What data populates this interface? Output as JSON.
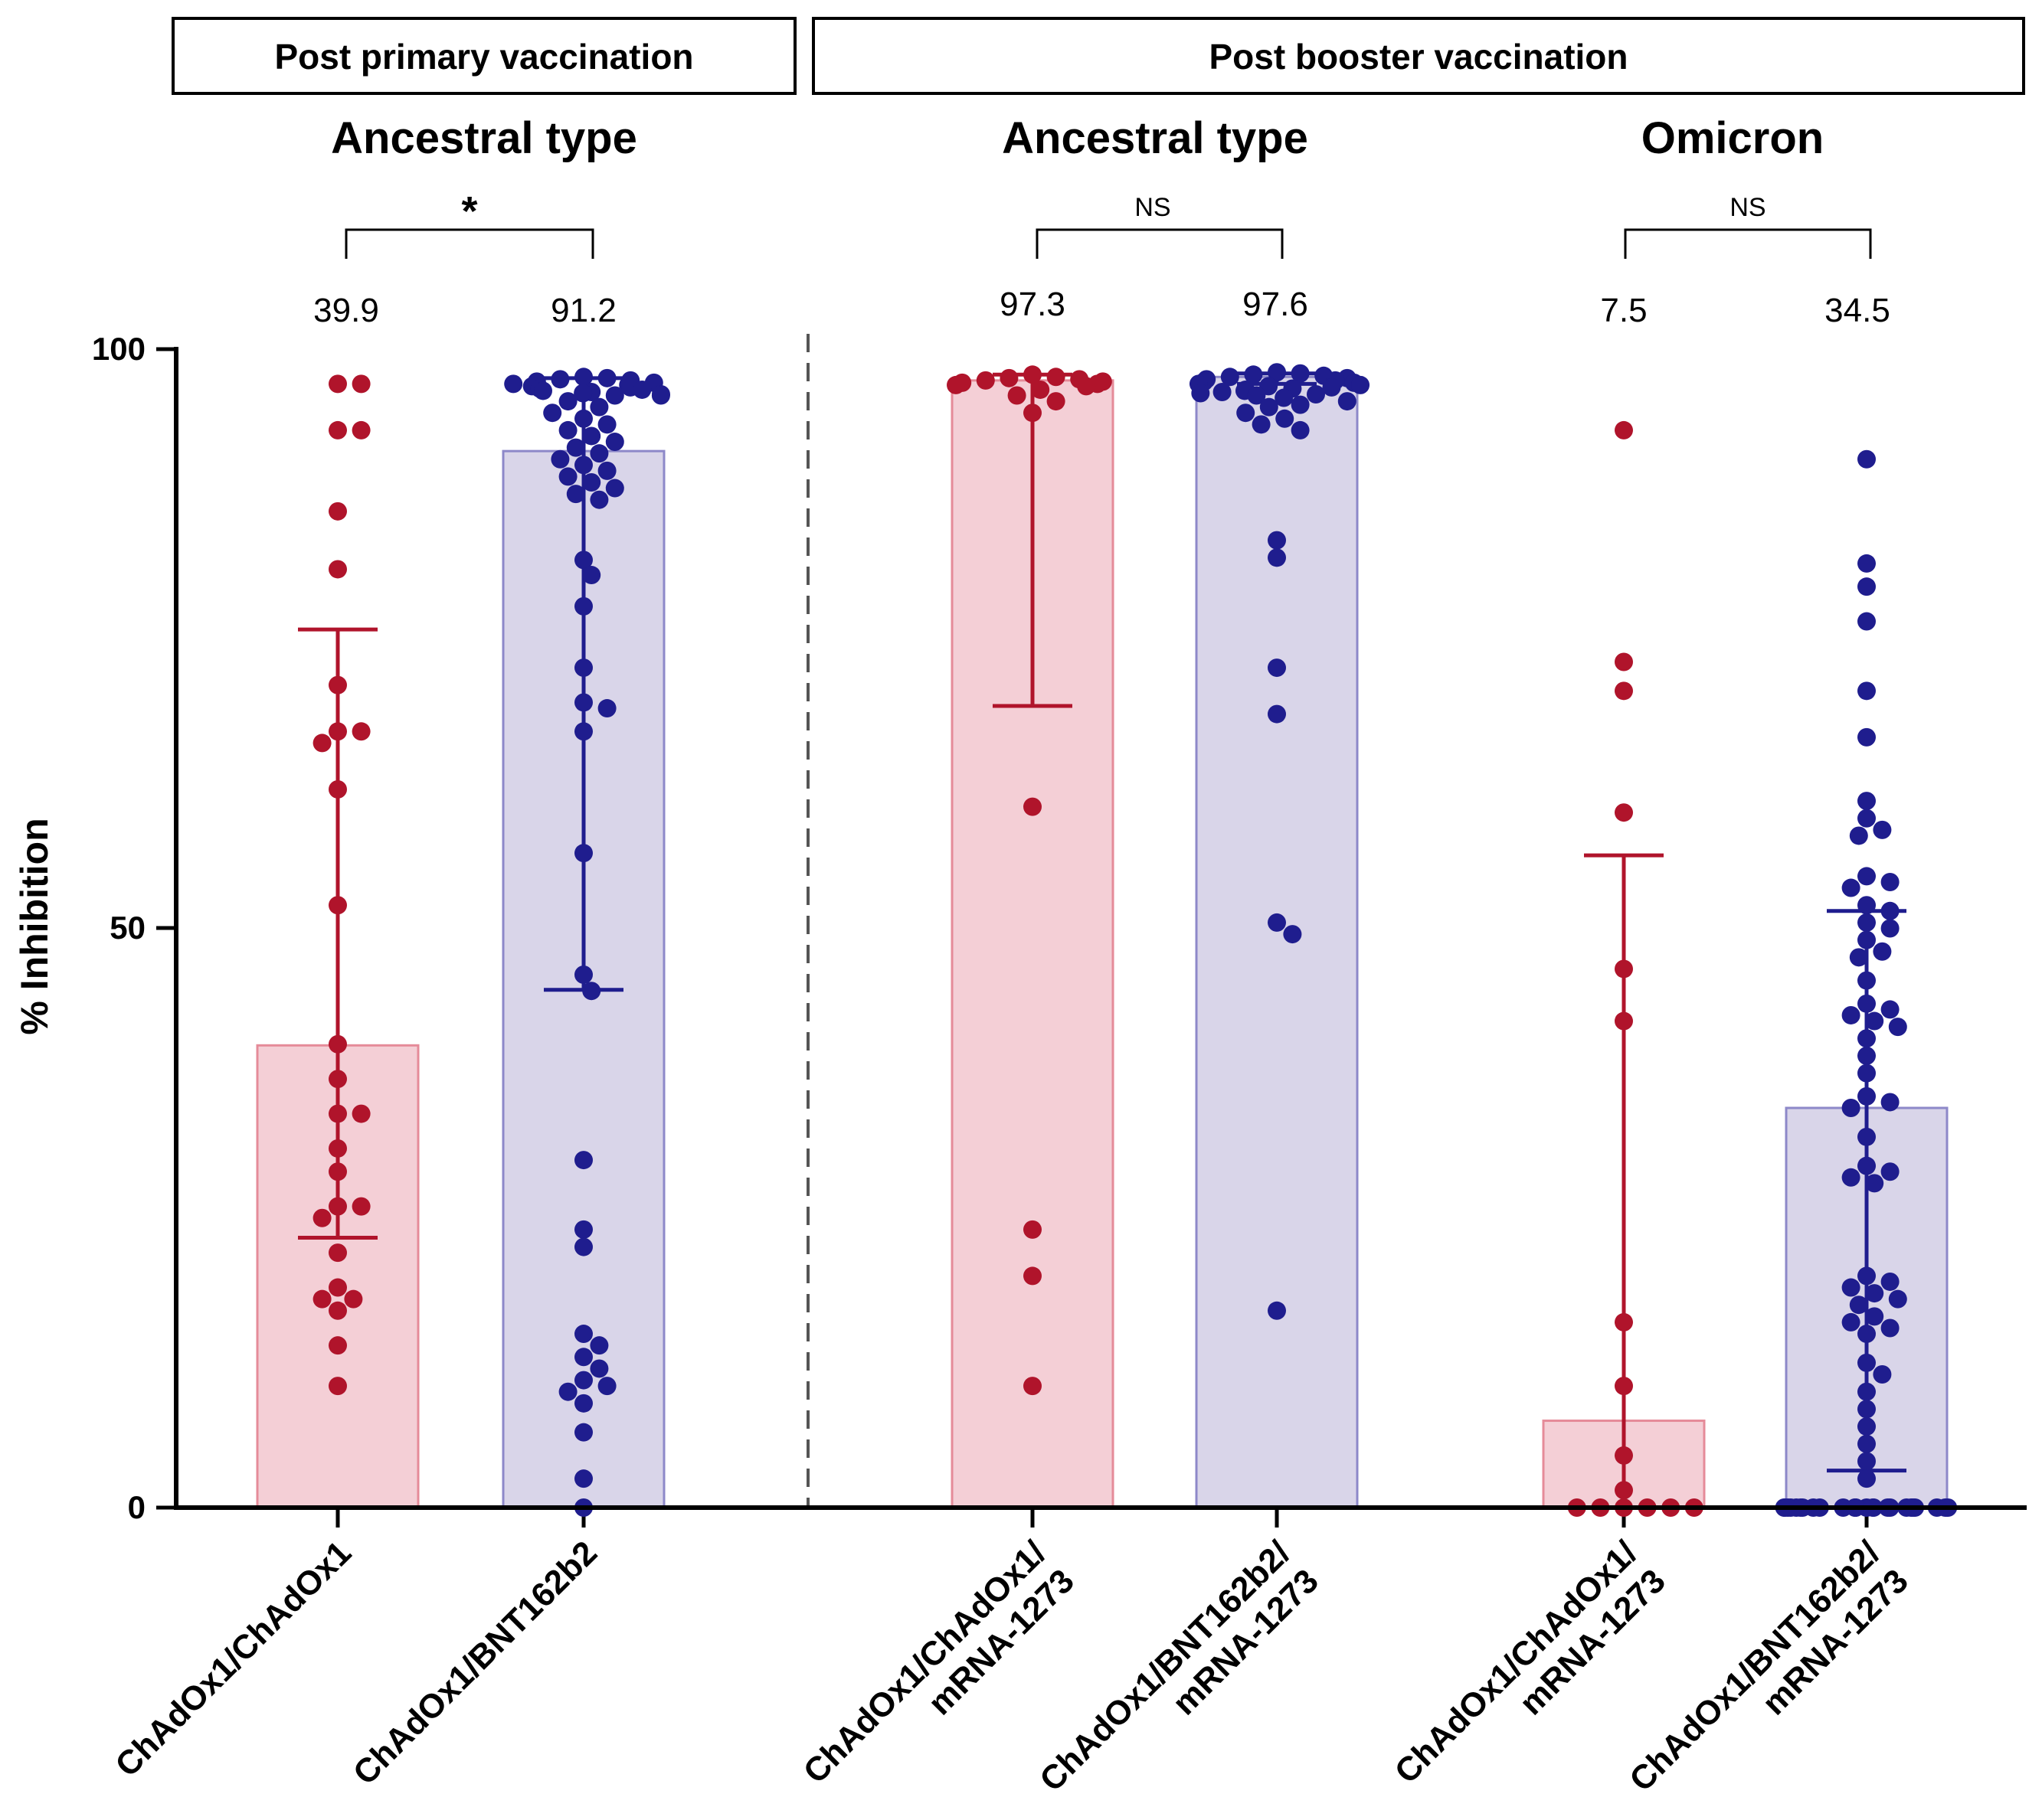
{
  "chart_data": {
    "type": "bar",
    "ylabel": "% Inhibition",
    "ylim": [
      0,
      100
    ],
    "yticks": [
      0,
      50,
      100
    ],
    "colors": {
      "red_fill": "#f4cfd6",
      "red_stroke": "#e58b99",
      "red_point": "#b0142b",
      "blue_fill": "#d9d5e9",
      "blue_stroke": "#8d88c9",
      "blue_point": "#1f1d8e"
    },
    "panels": [
      {
        "label": "Post primary vaccination"
      },
      {
        "label": "Post booster vaccination"
      }
    ],
    "groups": [
      {
        "title": "Ancestral type",
        "significance": "*"
      },
      {
        "title": "Ancestral type",
        "significance": "NS"
      },
      {
        "title": "Omicron",
        "significance": "NS"
      }
    ],
    "bars": [
      {
        "label": [
          "ChAdOx1/ChAdOx1"
        ],
        "mean_label": "39.9",
        "value": 39.9,
        "err_low": 23.3,
        "err_high": 75.8,
        "color": "red",
        "points": [
          97,
          97,
          93,
          93,
          86,
          81,
          71,
          67,
          67,
          66,
          62,
          52,
          40,
          37,
          34,
          34,
          31,
          29,
          26,
          26,
          25,
          22,
          19,
          18,
          18,
          17,
          14,
          10.5
        ]
      },
      {
        "label": [
          "ChAdOx1/BNT162b2"
        ],
        "mean_label": "91.2",
        "value": 91.2,
        "err_low": 44.7,
        "err_high": 97.5,
        "color": "blue",
        "points": [
          97.6,
          97.5,
          97.4,
          97.3,
          97.2,
          97.1,
          97.0,
          96.9,
          96.8,
          96.7,
          96.6,
          96.5,
          96.4,
          96.3,
          96.2,
          96.1,
          96,
          96,
          95.5,
          95,
          94.5,
          94,
          93.5,
          93,
          92.5,
          92,
          91.5,
          91,
          90.5,
          90,
          89.5,
          89,
          88.5,
          88,
          87.5,
          87,
          81.8,
          80.5,
          77.8,
          72.5,
          69.5,
          69,
          67,
          56.5,
          46,
          44.6,
          30,
          24,
          22.5,
          15,
          14,
          13,
          12,
          11,
          10.5,
          10,
          9,
          6.5,
          2.5,
          0
        ]
      },
      {
        "label": [
          "ChAdOx1/ChAdOx1/",
          "mRNA-1273"
        ],
        "mean_label": "97.3",
        "value": 97.3,
        "err_low": 69.2,
        "err_high": 97.8,
        "color": "red",
        "points": [
          97.8,
          97.6,
          97.5,
          97.4,
          97.3,
          97.2,
          97.1,
          97,
          96.9,
          96.8,
          96.5,
          96,
          95.5,
          94.5,
          60.5,
          24,
          20,
          10.5
        ]
      },
      {
        "label": [
          "ChAdOx1/BNT162b2/",
          "mRNA-1273"
        ],
        "mean_label": "97.6",
        "value": 97.6,
        "err_low": 97.0,
        "err_high": 97.9,
        "color": "blue",
        "points": [
          98,
          97.9,
          97.8,
          97.7,
          97.6,
          97.5,
          97.4,
          97.3,
          97.2,
          97.1,
          97,
          96.9,
          96.8,
          96.7,
          96.6,
          96.5,
          96.4,
          96.3,
          96.2,
          96.1,
          96,
          95.8,
          95.5,
          95.2,
          95,
          94.5,
          94,
          93.5,
          93,
          83.5,
          82,
          72.5,
          68.5,
          50.5,
          49.5,
          17
        ]
      },
      {
        "label": [
          "ChAdOx1/ChAdOx1/",
          "mRNA-1273"
        ],
        "mean_label": "7.5",
        "value": 7.5,
        "err_low": 0,
        "err_high": 56.3,
        "color": "red",
        "points": [
          93,
          73,
          70.5,
          60,
          46.5,
          42,
          16,
          10.5,
          4.5,
          1.5,
          0,
          0,
          0,
          0,
          0,
          0
        ]
      },
      {
        "label": [
          "ChAdOx1/BNT162b2/",
          "mRNA-1273"
        ],
        "mean_label": "34.5",
        "value": 34.5,
        "err_low": 3.2,
        "err_high": 51.5,
        "color": "blue",
        "points": [
          90.5,
          81.5,
          79.5,
          76.5,
          70.5,
          66.5,
          61,
          59.5,
          58.5,
          58,
          54.5,
          54,
          53.5,
          52,
          51.5,
          50.5,
          50,
          49,
          48,
          47.5,
          45.5,
          43.5,
          43,
          42.5,
          42,
          41.5,
          40.5,
          39,
          37.5,
          35.5,
          35,
          34.5,
          32,
          29.5,
          29,
          28.5,
          28,
          20,
          19.5,
          19,
          18.5,
          18,
          17.5,
          16.5,
          16,
          15.5,
          15,
          12.5,
          11.5,
          10,
          8.5,
          7,
          5.5,
          4,
          2.5,
          0,
          0,
          0,
          0,
          0,
          0,
          0,
          0,
          0,
          0,
          0,
          0,
          0,
          0,
          0,
          0,
          0,
          0,
          0,
          0,
          0,
          0,
          0,
          0,
          0,
          0
        ]
      }
    ]
  }
}
